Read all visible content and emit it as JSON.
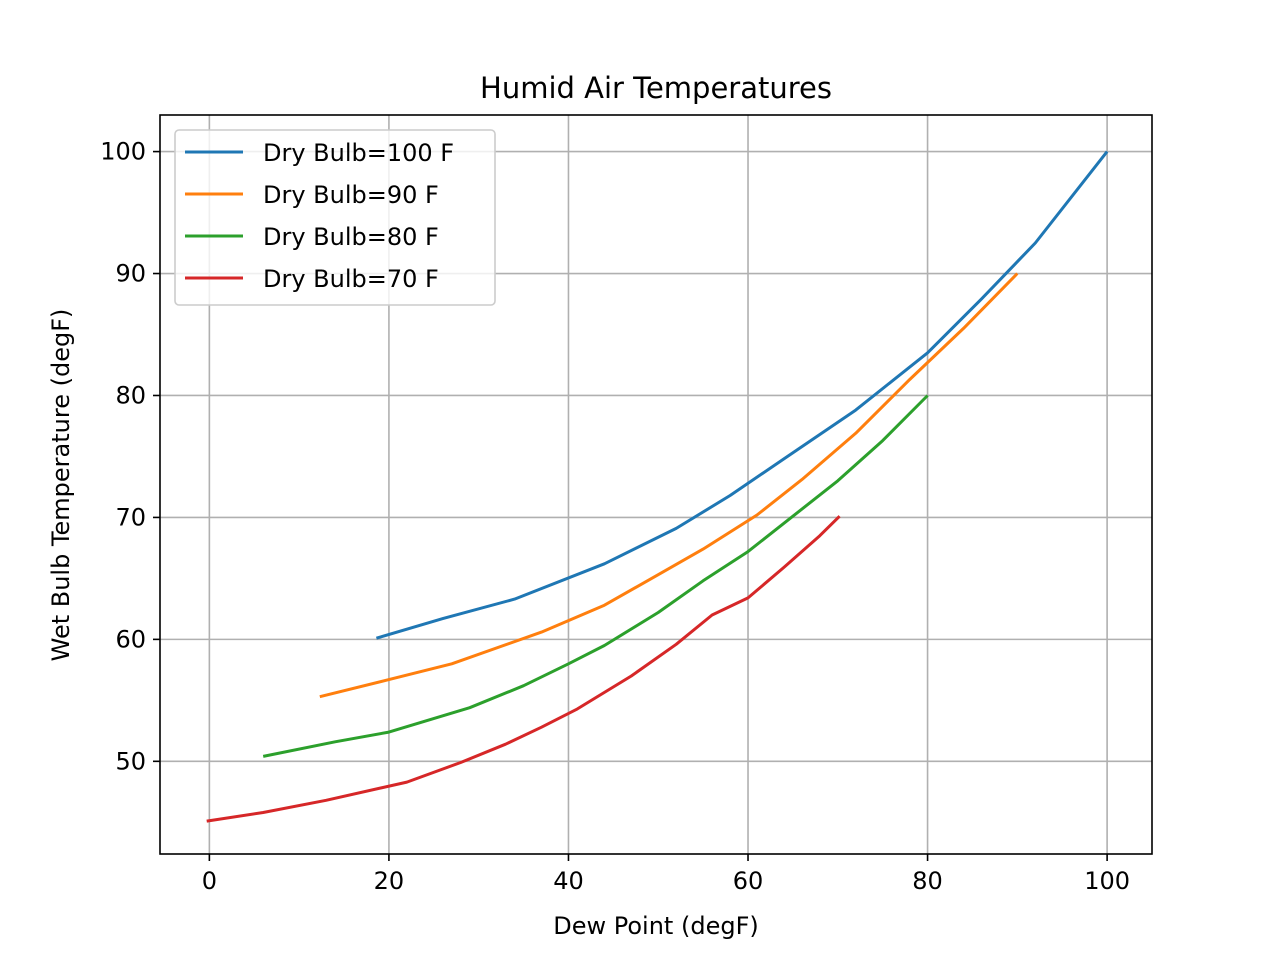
{
  "chart_data": {
    "type": "line",
    "title": "Humid Air Temperatures",
    "xlabel": "Dew Point (degF)",
    "ylabel": "Wet Bulb Temperature (degF)",
    "xlim": [
      -5.5,
      105
    ],
    "ylim": [
      42.4,
      103
    ],
    "x_ticks": [
      0,
      20,
      40,
      60,
      80,
      100
    ],
    "y_ticks": [
      50,
      60,
      70,
      80,
      90,
      100
    ],
    "grid": true,
    "legend_position": "upper-left",
    "series": [
      {
        "name": "Dry Bulb=100 F",
        "color": "#1f77b4",
        "points": [
          [
            18.6,
            60.1
          ],
          [
            26,
            61.7
          ],
          [
            34,
            63.3
          ],
          [
            44,
            66.2
          ],
          [
            52,
            69.1
          ],
          [
            58,
            71.8
          ],
          [
            64,
            74.8
          ],
          [
            72,
            78.8
          ],
          [
            80,
            83.5
          ],
          [
            86,
            87.9
          ],
          [
            92,
            92.5
          ],
          [
            100,
            100
          ]
        ]
      },
      {
        "name": "Dry Bulb=90 F",
        "color": "#ff7f0e",
        "points": [
          [
            12.3,
            55.3
          ],
          [
            20,
            56.7
          ],
          [
            27,
            58
          ],
          [
            37,
            60.6
          ],
          [
            44,
            62.8
          ],
          [
            50,
            65.3
          ],
          [
            55,
            67.4
          ],
          [
            61,
            70.2
          ],
          [
            66,
            73.1
          ],
          [
            72,
            76.9
          ],
          [
            78,
            81.3
          ],
          [
            84,
            85.5
          ],
          [
            90,
            90
          ]
        ]
      },
      {
        "name": "Dry Bulb=80 F",
        "color": "#2ca02c",
        "points": [
          [
            6,
            50.4
          ],
          [
            14,
            51.6
          ],
          [
            20,
            52.4
          ],
          [
            29,
            54.4
          ],
          [
            35,
            56.2
          ],
          [
            40,
            58
          ],
          [
            44,
            59.5
          ],
          [
            50,
            62.2
          ],
          [
            55,
            64.8
          ],
          [
            60,
            67.2
          ],
          [
            65,
            70.1
          ],
          [
            70,
            73
          ],
          [
            75,
            76.3
          ],
          [
            80,
            80
          ]
        ]
      },
      {
        "name": "Dry Bulb=70 F",
        "color": "#d62728",
        "points": [
          [
            -0.3,
            45.1
          ],
          [
            6,
            45.8
          ],
          [
            13,
            46.8
          ],
          [
            22,
            48.3
          ],
          [
            28,
            49.9
          ],
          [
            33,
            51.4
          ],
          [
            37,
            52.8
          ],
          [
            41,
            54.3
          ],
          [
            47,
            57
          ],
          [
            52,
            59.6
          ],
          [
            56,
            62
          ],
          [
            60,
            63.4
          ],
          [
            64,
            65.9
          ],
          [
            68,
            68.5
          ],
          [
            70.2,
            70.1
          ]
        ]
      }
    ]
  }
}
